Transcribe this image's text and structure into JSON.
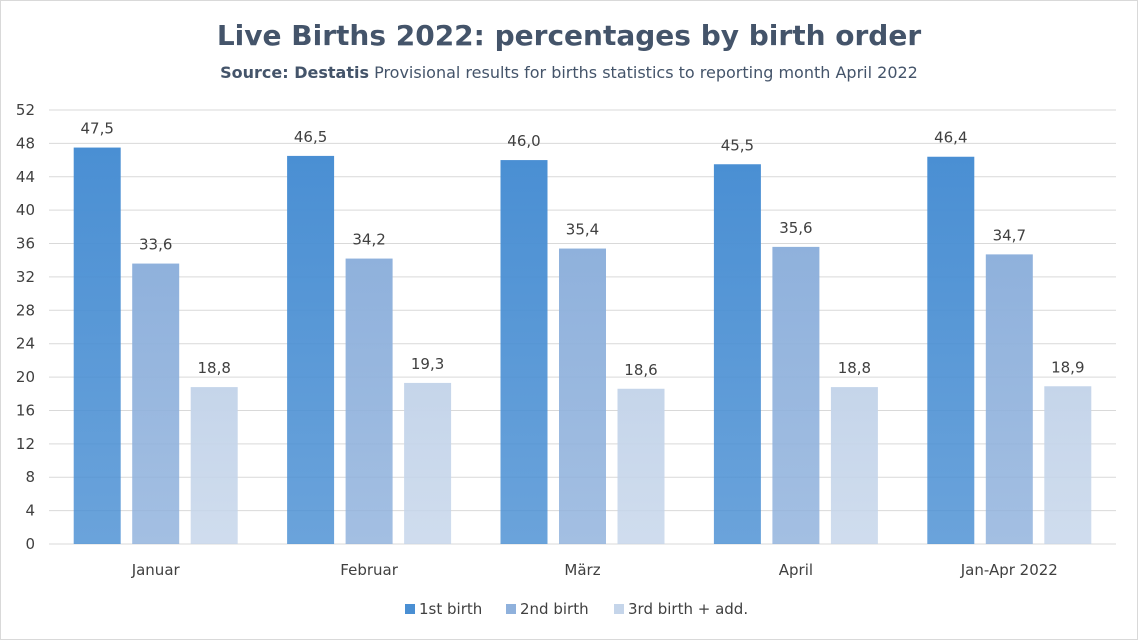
{
  "chart_title": "Live Births 2022: percentages by birth order",
  "source_label": "Source: Destatis",
  "source_text": "Provisional results for births statistics to reporting month April 2022",
  "colors": {
    "series_1": "#4a8fd3",
    "series_2": "#8fb1dc",
    "series_3": "#c5d5ea",
    "gridline": "#d9d9d9",
    "text": "#404040",
    "title": "#44546a"
  },
  "chart_data": {
    "type": "bar",
    "title": "Live Births 2022: percentages by birth order",
    "subtitle": "Source: Destatis Provisional results for births statistics to reporting month April 2022",
    "categories": [
      "Januar",
      "Februar",
      "März",
      "April",
      "Jan-Apr 2022"
    ],
    "series": [
      {
        "name": "1st birth",
        "values": [
          47.5,
          46.5,
          46.0,
          45.5,
          46.4
        ],
        "labels": [
          "47,5",
          "46,5",
          "46,0",
          "45,5",
          "46,4"
        ]
      },
      {
        "name": "2nd birth",
        "values": [
          33.6,
          34.2,
          35.4,
          35.6,
          34.7
        ],
        "labels": [
          "33,6",
          "34,2",
          "35,4",
          "35,6",
          "34,7"
        ]
      },
      {
        "name": "3rd birth + add.",
        "values": [
          18.8,
          19.3,
          18.6,
          18.8,
          18.9
        ],
        "labels": [
          "18,8",
          "19,3",
          "18,6",
          "18,8",
          "18,9"
        ]
      }
    ],
    "ylim": [
      0,
      52
    ],
    "yticks": [
      0,
      4,
      8,
      12,
      16,
      20,
      24,
      28,
      32,
      36,
      40,
      44,
      48,
      52
    ],
    "grid": true,
    "legend_position": "bottom"
  }
}
